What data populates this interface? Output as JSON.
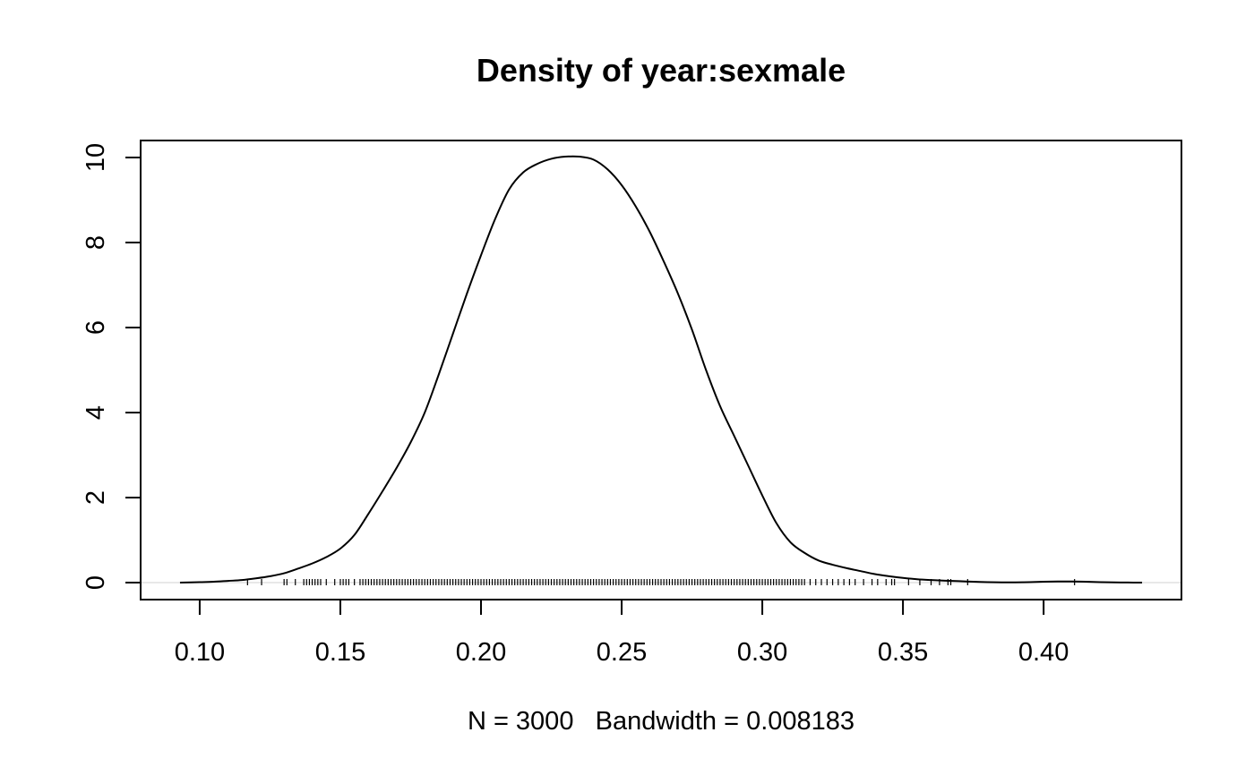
{
  "chart_data": {
    "type": "line",
    "title": "Density of year:sexmale",
    "xlabel": "N = 3000   Bandwidth = 0.008183",
    "ylabel": "",
    "xlim": [
      0.079,
      0.449
    ],
    "ylim": [
      -0.4,
      10.4
    ],
    "x_ticks": [
      0.1,
      0.15,
      0.2,
      0.25,
      0.3,
      0.35,
      0.4
    ],
    "x_tick_labels": [
      "0.10",
      "0.15",
      "0.20",
      "0.25",
      "0.30",
      "0.35",
      "0.40"
    ],
    "y_ticks": [
      0,
      2,
      4,
      6,
      8,
      10
    ],
    "y_tick_labels": [
      "0",
      "2",
      "4",
      "6",
      "8",
      "10"
    ],
    "grid": false,
    "legend": "none",
    "zero_line": true,
    "colors": {
      "line": "#000000",
      "zero_line": "#d9d9d9",
      "rug": "#000000",
      "axis": "#000000"
    },
    "series": [
      {
        "x": [
          0.093,
          0.1,
          0.105,
          0.11,
          0.115,
          0.12,
          0.125,
          0.13,
          0.135,
          0.14,
          0.145,
          0.15,
          0.155,
          0.16,
          0.165,
          0.17,
          0.175,
          0.18,
          0.185,
          0.19,
          0.195,
          0.2,
          0.205,
          0.21,
          0.215,
          0.22,
          0.225,
          0.23,
          0.235,
          0.24,
          0.245,
          0.25,
          0.255,
          0.26,
          0.265,
          0.27,
          0.275,
          0.28,
          0.285,
          0.29,
          0.295,
          0.3,
          0.305,
          0.31,
          0.315,
          0.32,
          0.325,
          0.33,
          0.335,
          0.34,
          0.345,
          0.35,
          0.355,
          0.36,
          0.365,
          0.37,
          0.375,
          0.38,
          0.385,
          0.39,
          0.395,
          0.4,
          0.405,
          0.41,
          0.415,
          0.42,
          0.425,
          0.43,
          0.435
        ],
        "y": [
          0.0,
          0.01,
          0.02,
          0.04,
          0.06,
          0.1,
          0.15,
          0.22,
          0.33,
          0.45,
          0.6,
          0.8,
          1.12,
          1.62,
          2.15,
          2.7,
          3.3,
          4.0,
          4.9,
          5.85,
          6.8,
          7.7,
          8.55,
          9.25,
          9.65,
          9.85,
          9.97,
          10.02,
          10.02,
          9.95,
          9.72,
          9.35,
          8.85,
          8.25,
          7.55,
          6.8,
          5.95,
          5.0,
          4.15,
          3.45,
          2.75,
          2.05,
          1.4,
          0.95,
          0.7,
          0.52,
          0.42,
          0.34,
          0.27,
          0.2,
          0.15,
          0.11,
          0.08,
          0.06,
          0.045,
          0.035,
          0.02,
          0.01,
          0.005,
          0.005,
          0.01,
          0.02,
          0.025,
          0.025,
          0.02,
          0.01,
          0.005,
          0.002,
          0.0
        ]
      }
    ],
    "rug": {
      "description": "individual sample positions along x-axis",
      "x": [
        0.117,
        0.122,
        0.13,
        0.131,
        0.134,
        0.137,
        0.138,
        0.139,
        0.14,
        0.141,
        0.142,
        0.143,
        0.145,
        0.148,
        0.15,
        0.151,
        0.152,
        0.153,
        0.155,
        0.157,
        0.158,
        0.159,
        0.16,
        0.161,
        0.162,
        0.163,
        0.164,
        0.165,
        0.166,
        0.167,
        0.168,
        0.169,
        0.17,
        0.171,
        0.172,
        0.173,
        0.174,
        0.175,
        0.176,
        0.177,
        0.178,
        0.179,
        0.18,
        0.181,
        0.182,
        0.183,
        0.184,
        0.185,
        0.186,
        0.187,
        0.188,
        0.189,
        0.19,
        0.191,
        0.192,
        0.193,
        0.194,
        0.195,
        0.196,
        0.197,
        0.198,
        0.199,
        0.2,
        0.201,
        0.202,
        0.203,
        0.204,
        0.205,
        0.206,
        0.207,
        0.208,
        0.209,
        0.21,
        0.211,
        0.212,
        0.213,
        0.214,
        0.215,
        0.216,
        0.217,
        0.218,
        0.219,
        0.22,
        0.221,
        0.222,
        0.223,
        0.224,
        0.225,
        0.226,
        0.227,
        0.228,
        0.229,
        0.23,
        0.231,
        0.232,
        0.233,
        0.234,
        0.235,
        0.236,
        0.237,
        0.238,
        0.239,
        0.24,
        0.241,
        0.242,
        0.243,
        0.244,
        0.245,
        0.246,
        0.247,
        0.248,
        0.249,
        0.25,
        0.251,
        0.252,
        0.253,
        0.254,
        0.255,
        0.256,
        0.257,
        0.258,
        0.259,
        0.26,
        0.261,
        0.262,
        0.263,
        0.264,
        0.265,
        0.266,
        0.267,
        0.268,
        0.269,
        0.27,
        0.271,
        0.272,
        0.273,
        0.274,
        0.275,
        0.276,
        0.277,
        0.278,
        0.279,
        0.28,
        0.281,
        0.282,
        0.283,
        0.284,
        0.285,
        0.286,
        0.287,
        0.288,
        0.289,
        0.29,
        0.291,
        0.292,
        0.293,
        0.294,
        0.295,
        0.296,
        0.297,
        0.298,
        0.299,
        0.3,
        0.301,
        0.302,
        0.303,
        0.304,
        0.305,
        0.306,
        0.307,
        0.308,
        0.309,
        0.31,
        0.311,
        0.312,
        0.313,
        0.314,
        0.315,
        0.317,
        0.319,
        0.321,
        0.323,
        0.325,
        0.327,
        0.329,
        0.331,
        0.333,
        0.336,
        0.339,
        0.341,
        0.344,
        0.346,
        0.347,
        0.352,
        0.356,
        0.36,
        0.363,
        0.366,
        0.367,
        0.373,
        0.411
      ]
    }
  }
}
